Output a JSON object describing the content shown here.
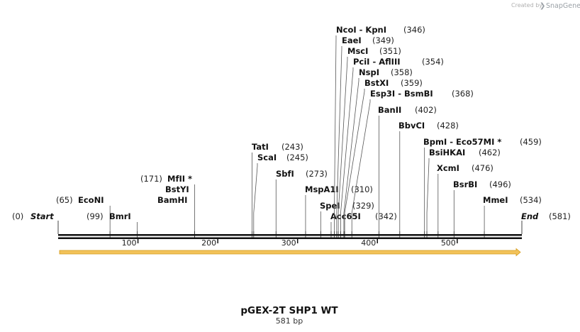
{
  "credit": {
    "prefix": "Created by",
    "product": "SnapGene"
  },
  "sequence": {
    "name": "pGEX-2T SHP1 WT",
    "length_label": "581 bp",
    "length": 581
  },
  "ends": {
    "start": {
      "label": "Start",
      "pos_label": "(0)",
      "pos": 0
    },
    "end": {
      "label": "End",
      "pos_label": "(581)",
      "pos": 581
    }
  },
  "ruler": {
    "ticks": [
      100,
      200,
      300,
      400,
      500
    ]
  },
  "feature": {
    "color": "#f2c25a",
    "border_color": "#d49b1a",
    "start": 0,
    "end": 581
  },
  "sites": [
    {
      "enzyme": "EcoNI",
      "pos_label": "(65)",
      "pos": 65
    },
    {
      "enzyme": "BmrI",
      "pos_label": "(99)",
      "pos": 99
    },
    {
      "enzyme": "MfII *",
      "pos_label": "(171)",
      "pos": 171
    },
    {
      "enzyme": "BstYI",
      "pos_label": "",
      "pos": 171
    },
    {
      "enzyme": "BamHI",
      "pos_label": "",
      "pos": 171
    },
    {
      "enzyme": "TatI",
      "pos_label": "(243)",
      "pos": 243
    },
    {
      "enzyme": "ScaI",
      "pos_label": "(245)",
      "pos": 245
    },
    {
      "enzyme": "SbfI",
      "pos_label": "(273)",
      "pos": 273
    },
    {
      "enzyme": "MspA1I",
      "pos_label": "(310)",
      "pos": 310
    },
    {
      "enzyme": "SpeI",
      "pos_label": "(329)",
      "pos": 329
    },
    {
      "enzyme": "Acc65I",
      "pos_label": "(342)",
      "pos": 342
    },
    {
      "enzyme": "NcoI",
      "enzyme2": "KpnI",
      "pos_label": "(346)",
      "pos": 346
    },
    {
      "enzyme": "EaeI",
      "pos_label": "(349)",
      "pos": 349
    },
    {
      "enzyme": "MscI",
      "pos_label": "(351)",
      "pos": 351
    },
    {
      "enzyme": "PciI",
      "enzyme2": "AflIII",
      "pos_label": "(354)",
      "pos": 354
    },
    {
      "enzyme": "NspI",
      "pos_label": "(358)",
      "pos": 358
    },
    {
      "enzyme": "BstXI",
      "pos_label": "(359)",
      "pos": 359
    },
    {
      "enzyme": "Esp3I",
      "enzyme2": "BsmBI",
      "pos_label": "(368)",
      "pos": 368
    },
    {
      "enzyme": "BanII",
      "pos_label": "(402)",
      "pos": 402
    },
    {
      "enzyme": "BbvCI",
      "pos_label": "(428)",
      "pos": 428
    },
    {
      "enzyme": "BpmI",
      "enzyme2": "Eco57MI *",
      "pos_label": "(459)",
      "pos": 459
    },
    {
      "enzyme": "BsiHKAI",
      "pos_label": "(462)",
      "pos": 462
    },
    {
      "enzyme": "XcmI",
      "pos_label": "(476)",
      "pos": 476
    },
    {
      "enzyme": "BsrBI",
      "pos_label": "(496)",
      "pos": 496
    },
    {
      "enzyme": "MmeI",
      "pos_label": "(534)",
      "pos": 534
    }
  ]
}
